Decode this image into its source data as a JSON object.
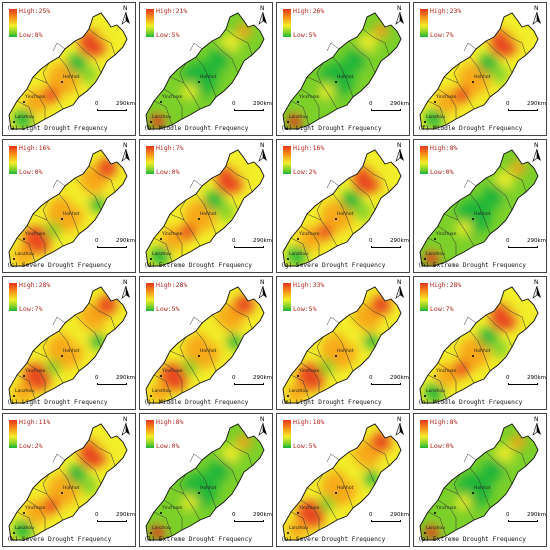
{
  "colors": {
    "high": "#e8341c",
    "mid_high": "#f7a21b",
    "mid": "#f2ee2a",
    "mid_low": "#7bd02a",
    "low": "#16b43a",
    "border": "#444444",
    "boundary": "#333333"
  },
  "icons": {
    "north_arrow": "north-arrow-icon"
  },
  "panels": [
    {
      "high": "High:25%",
      "low": "Low:8%",
      "scale_zero": "0",
      "scale_dist": "290km",
      "north": "N",
      "caption": "(a)  Light Drought Frequency",
      "cities": [
        "Hohhot",
        "Yinchuan",
        "Lanzhou"
      ],
      "dominant": "mixed"
    },
    {
      "high": "High:21%",
      "low": "Low:5%",
      "scale_zero": "0",
      "scale_dist": "290km",
      "north": "N",
      "caption": "(b)  Middle Drought Frequency",
      "cities": [
        "Hohhot",
        "Yinchuan",
        "Lanzhou"
      ],
      "dominant": "green"
    },
    {
      "high": "High:26%",
      "low": "Low:5%",
      "scale_zero": "0",
      "scale_dist": "290km",
      "north": "N",
      "caption": "(e)  Light Drought Frequency",
      "cities": [
        "Hohhot",
        "Yinchuan",
        "Lanzhou"
      ],
      "dominant": "green"
    },
    {
      "high": "High:23%",
      "low": "Low:7%",
      "scale_zero": "0",
      "scale_dist": "290km",
      "north": "N",
      "caption": "(f)  Middle Drought Frequency",
      "cities": [
        "Hohhot",
        "Yinchuan",
        "Lanzhou"
      ],
      "dominant": "mixed"
    },
    {
      "high": "High:16%",
      "low": "Low:0%",
      "scale_zero": "0",
      "scale_dist": "290km",
      "north": "N",
      "caption": "(c)  Severe Drought Frequency",
      "cities": [
        "Hohhot",
        "Yinchuan",
        "Lanzhou"
      ],
      "dominant": "orange"
    },
    {
      "high": "High:7%",
      "low": "Low:0%",
      "scale_zero": "0",
      "scale_dist": "290km",
      "north": "N",
      "caption": "(d)  Extreme Drought Frequency",
      "cities": [
        "Hohhot",
        "Yinchuan",
        "Lanzhou"
      ],
      "dominant": "mixed"
    },
    {
      "high": "High:16%",
      "low": "Low:2%",
      "scale_zero": "0",
      "scale_dist": "290km",
      "north": "N",
      "caption": "(g)  Severe Drought Frequency",
      "cities": [
        "Hohhot",
        "Yinchuan",
        "Lanzhou"
      ],
      "dominant": "mixed"
    },
    {
      "high": "High:8%",
      "low": "Low:0%",
      "scale_zero": "0",
      "scale_dist": "290km",
      "north": "N",
      "caption": "(h)  Extreme Drought Frequency",
      "cities": [
        "Hohhot",
        "Yinchuan",
        "Lanzhou"
      ],
      "dominant": "green"
    },
    {
      "high": "High:28%",
      "low": "Low:7%",
      "scale_zero": "0",
      "scale_dist": "290km",
      "north": "N",
      "caption": "(i)  Light Drought Frequency",
      "cities": [
        "Hohhot",
        "Yinchuan",
        "Lanzhou"
      ],
      "dominant": "orange"
    },
    {
      "high": "High:28%",
      "low": "Low:5%",
      "scale_zero": "0",
      "scale_dist": "290km",
      "north": "N",
      "caption": "(j)  Middle Drought Frequency",
      "cities": [
        "Hohhot",
        "Yinchuan",
        "Lanzhou"
      ],
      "dominant": "orange"
    },
    {
      "high": "High:33%",
      "low": "Low:5%",
      "scale_zero": "0",
      "scale_dist": "290km",
      "north": "N",
      "caption": "(m)  Light Drought Frequency",
      "cities": [
        "Hohhot",
        "Yinchuan",
        "Lanzhou"
      ],
      "dominant": "orange"
    },
    {
      "high": "High:28%",
      "low": "Low:7%",
      "scale_zero": "0",
      "scale_dist": "290km",
      "north": "N",
      "caption": "(n)  Middle Drought Frequency",
      "cities": [
        "Hohhot",
        "Yinchuan",
        "Lanzhou"
      ],
      "dominant": "mixed"
    },
    {
      "high": "High:11%",
      "low": "Low:2%",
      "scale_zero": "0",
      "scale_dist": "290km",
      "north": "N",
      "caption": "(k)  Severe Drought Frequency",
      "cities": [
        "Hohhot",
        "Yinchuan",
        "Lanzhou"
      ],
      "dominant": "mixed"
    },
    {
      "high": "High:8%",
      "low": "Low:0%",
      "scale_zero": "0",
      "scale_dist": "290km",
      "north": "N",
      "caption": "(l)  Extreme Drought Frequency",
      "cities": [
        "Hohhot",
        "Yinchuan",
        "Lanzhou"
      ],
      "dominant": "green"
    },
    {
      "high": "High:18%",
      "low": "Low:5%",
      "scale_zero": "0",
      "scale_dist": "290km",
      "north": "N",
      "caption": "(o)  Severe Drought Frequency",
      "cities": [
        "Hohhot",
        "Yinchuan",
        "Lanzhou"
      ],
      "dominant": "orange"
    },
    {
      "high": "High:8%",
      "low": "Low:0%",
      "scale_zero": "0",
      "scale_dist": "290km",
      "north": "N",
      "caption": "(p)  Extreme Drought Frequency",
      "cities": [
        "Hohhot",
        "Yinchuan",
        "Lanzhou"
      ],
      "dominant": "green"
    }
  ]
}
